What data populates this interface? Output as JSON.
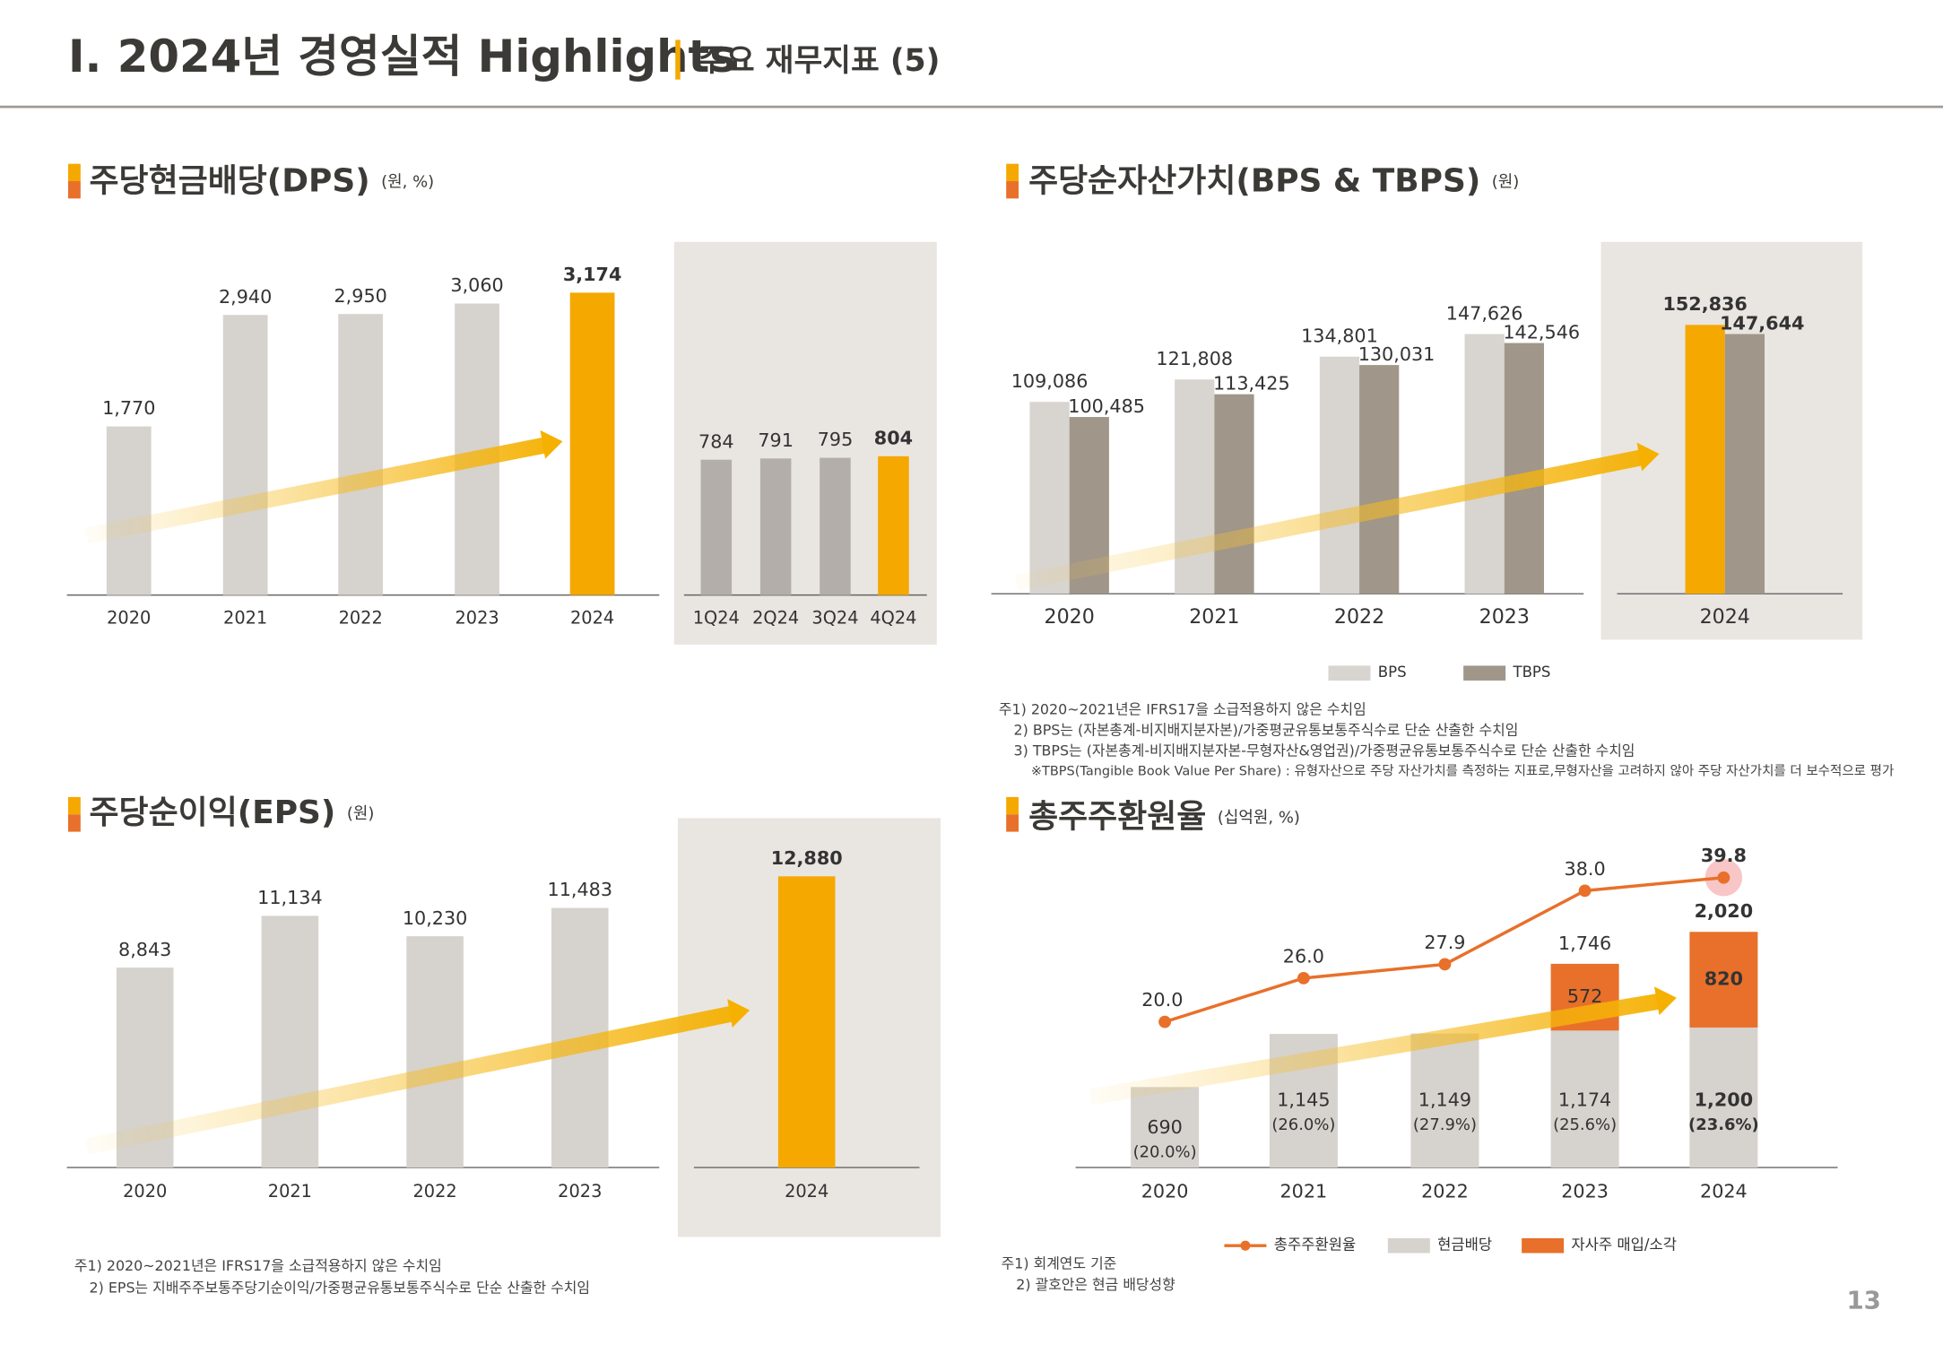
{
  "header": {
    "title": "I. 2024년 경영실적 Highlights",
    "subtitle": "주요 재무지표 (5)"
  },
  "page_number": "13",
  "chart_data": [
    {
      "type": "bar",
      "title": "주당현금배당(DPS)",
      "unit": "(원, %)",
      "categories": [
        "2020",
        "2021",
        "2022",
        "2023",
        "2024"
      ],
      "values": [
        1770,
        2940,
        2950,
        3060,
        3174
      ],
      "value_labels": [
        "1,770",
        "2,940",
        "2,950",
        "3,060",
        "3,174"
      ],
      "colors": [
        "#d6d2cd",
        "#d6d2cd",
        "#d6d2cd",
        "#d6d2cd",
        "#f5a800"
      ]
    },
    {
      "type": "bar",
      "categories": [
        "1Q24",
        "2Q24",
        "3Q24",
        "4Q24"
      ],
      "values": [
        784,
        791,
        795,
        804
      ],
      "colors": [
        "#b3aeaa",
        "#b3aeaa",
        "#b3aeaa",
        "#f5a800"
      ]
    },
    {
      "type": "grouped_bar",
      "title": "주당순자산가치(BPS & TBPS)",
      "unit": "(원)",
      "categories": [
        "2020",
        "2021",
        "2022",
        "2023",
        "2024"
      ],
      "series": [
        {
          "name": "BPS",
          "colors": [
            "#d8d4d0",
            "#d8d4d0",
            "#d8d4d0",
            "#d8d4d0",
            "#f5a800"
          ],
          "values": [
            109086,
            121808,
            134801,
            147626,
            152836
          ],
          "value_labels": [
            "109,086",
            "121,808",
            "134,801",
            "147,626",
            "152,836"
          ]
        },
        {
          "name": "TBPS",
          "colors": [
            "#a0968a",
            "#a0968a",
            "#a0968a",
            "#a0968a",
            "#a0968a"
          ],
          "values": [
            100485,
            113425,
            130031,
            142546,
            147644
          ],
          "value_labels": [
            "100,485",
            "113,425",
            "130,031",
            "142,546",
            "147,644"
          ]
        }
      ],
      "notes": [
        "주1) 2020~2021년은 IFRS17을 소급적용하지 않은 수치임",
        "2) BPS는 (자본총계-비지배지분자본)/가중평균유통보통주식수로 단순 산출한 수치임",
        "3) TBPS는 (자본총계-비지배지분자본-무형자산&영업권)/가중평균유통보통주식수로 단순 산출한 수치임",
        "※TBPS(Tangible Book Value Per Share) : 유형자산으로 주당 자산가치를 측정하는 지표로,무형자산을 고려하지 않아 주당 자산가치를 더 보수적으로 평가"
      ]
    },
    {
      "type": "bar",
      "title": "주당순이익(EPS)",
      "unit": "(원)",
      "categories": [
        "2020",
        "2021",
        "2022",
        "2023",
        "2024"
      ],
      "values": [
        8843,
        11134,
        10230,
        11483,
        12880
      ],
      "value_labels": [
        "8,843",
        "11,134",
        "10,230",
        "11,483",
        "12,880"
      ],
      "colors": [
        "#d6d2cd",
        "#d6d2cd",
        "#d6d2cd",
        "#d6d2cd",
        "#f5a800"
      ],
      "notes": [
        "주1) 2020~2021년은 IFRS17을 소급적용하지 않은 수치임",
        "2) EPS는 지배주주보통주당기순이익/가중평균유통보통주식수로 단순 산출한 수치임"
      ]
    },
    {
      "type": "combo",
      "title": "총주주환원율",
      "unit": "(십억원, %)",
      "categories": [
        "2020",
        "2021",
        "2022",
        "2023",
        "2024"
      ],
      "series": [
        {
          "name": "총주주환원율",
          "type": "line",
          "axis": "y2",
          "color": "#e8702a",
          "values": [
            20.0,
            26.0,
            27.9,
            38.0,
            39.8
          ],
          "value_labels": [
            "20.0",
            "26.0",
            "27.9",
            "38.0",
            "39.8"
          ]
        },
        {
          "name": "현금배당",
          "type": "bar",
          "color": "#d6d2cd",
          "values": [
            690,
            1145,
            1149,
            1174,
            1200
          ],
          "value_labels": [
            "690",
            "1,145",
            "1,149",
            "1,174",
            "1,200"
          ],
          "payout_ratio": {
            "values": [
              20.0,
              26.0,
              27.9,
              25.6,
              23.6
            ],
            "value_labels": [
              "(20.0%)",
              "(26.0%)",
              "(27.9%)",
              "(25.6%)",
              "(23.6%)"
            ]
          }
        },
        {
          "name": "자사주 매입/소각",
          "type": "bar",
          "color": "#e8702a",
          "values": [
            null,
            null,
            null,
            572,
            820
          ],
          "value_labels": [
            null,
            null,
            null,
            "572",
            "820"
          ]
        }
      ],
      "totals": {
        "values": [
          null,
          null,
          null,
          1746,
          2020
        ],
        "value_labels": [
          null,
          null,
          null,
          "1,746",
          "2,020"
        ]
      },
      "notes": [
        "주1) 회계연도 기준",
        "2) 괄호안은 현금 배당성향"
      ]
    }
  ]
}
